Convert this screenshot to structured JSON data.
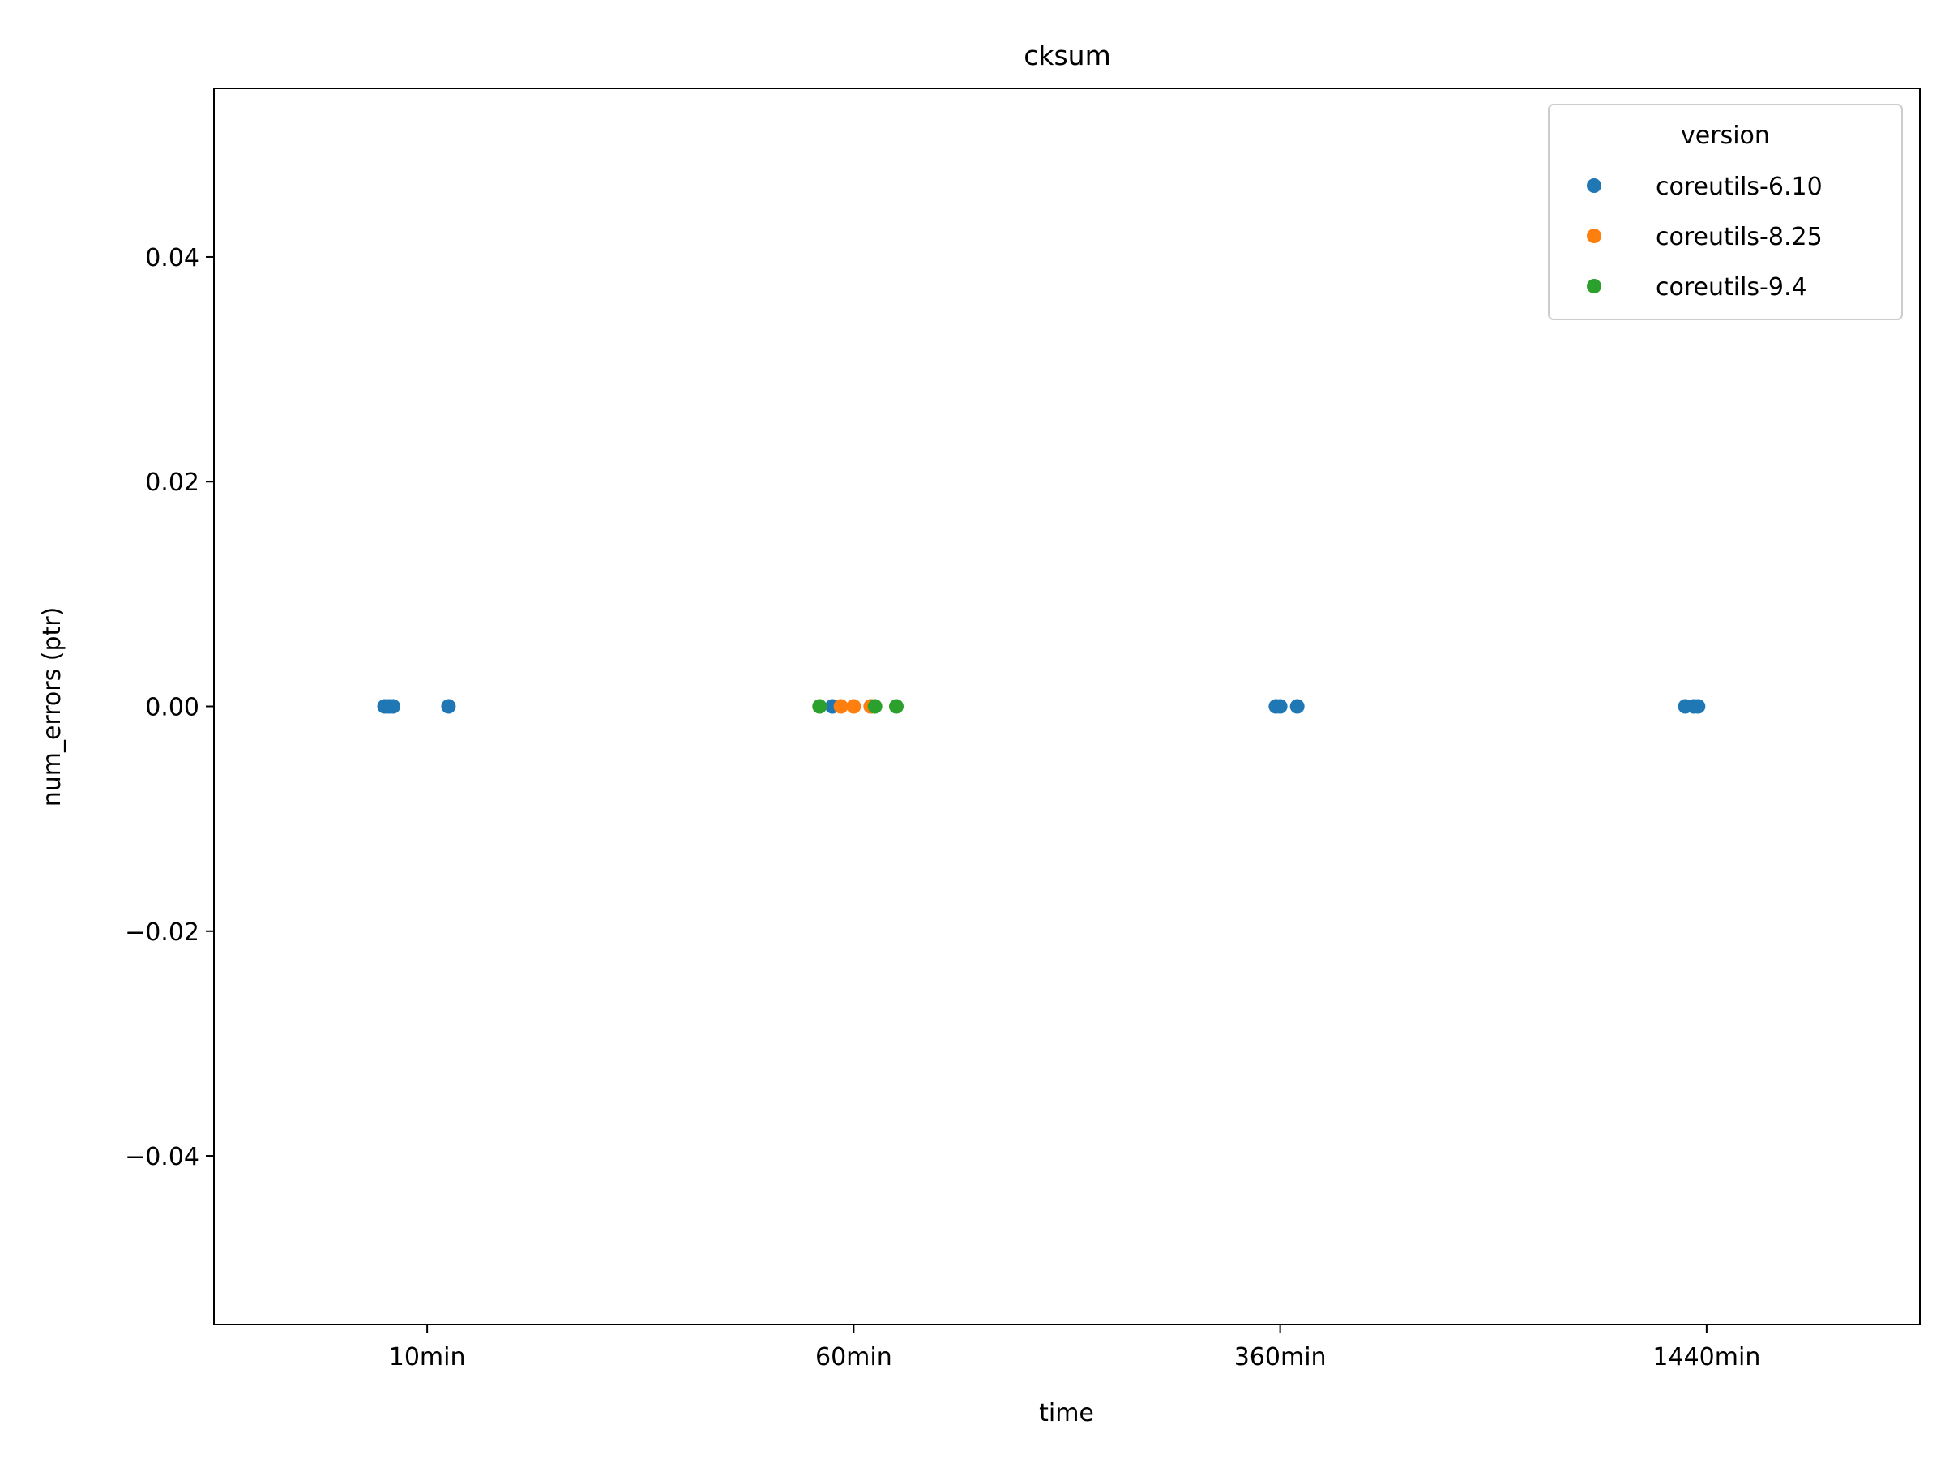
{
  "chart_data": {
    "type": "scatter",
    "title": "cksum",
    "xlabel": "time",
    "ylabel": "num_errors (ptr)",
    "categories": [
      "10min",
      "60min",
      "360min",
      "1440min"
    ],
    "ylim": [
      -0.055,
      0.055
    ],
    "yticks": [
      0.04,
      0.02,
      0.0,
      -0.02,
      -0.04
    ],
    "ytick_labels": [
      "0.04",
      "0.02",
      "0.00",
      "−0.02",
      "−0.04"
    ],
    "grid": false,
    "legend": {
      "title": "version",
      "placement": "top-right"
    },
    "series": [
      {
        "name": "coreutils-6.10",
        "color": "#1f77b4",
        "points": [
          {
            "x": "10min",
            "y": 0,
            "jitter": -0.1
          },
          {
            "x": "10min",
            "y": 0,
            "jitter": -0.09
          },
          {
            "x": "10min",
            "y": 0,
            "jitter": -0.08
          },
          {
            "x": "10min",
            "y": 0,
            "jitter": 0.05
          },
          {
            "x": "60min",
            "y": 0,
            "jitter": -0.05
          },
          {
            "x": "60min",
            "y": 0,
            "jitter": 0.04
          },
          {
            "x": "360min",
            "y": 0,
            "jitter": -0.01
          },
          {
            "x": "360min",
            "y": 0,
            "jitter": 0.0
          },
          {
            "x": "360min",
            "y": 0,
            "jitter": 0.04
          },
          {
            "x": "1440min",
            "y": 0,
            "jitter": -0.05
          },
          {
            "x": "1440min",
            "y": 0,
            "jitter": -0.03
          },
          {
            "x": "1440min",
            "y": 0,
            "jitter": -0.02
          }
        ]
      },
      {
        "name": "coreutils-8.25",
        "color": "#ff7f0e",
        "points": [
          {
            "x": "60min",
            "y": 0,
            "jitter": -0.03
          },
          {
            "x": "60min",
            "y": 0,
            "jitter": 0.0
          },
          {
            "x": "60min",
            "y": 0,
            "jitter": 0.04
          }
        ]
      },
      {
        "name": "coreutils-9.4",
        "color": "#2ca02c",
        "points": [
          {
            "x": "60min",
            "y": 0,
            "jitter": -0.08
          },
          {
            "x": "60min",
            "y": 0,
            "jitter": 0.05
          },
          {
            "x": "60min",
            "y": 0,
            "jitter": 0.1
          }
        ]
      }
    ]
  }
}
